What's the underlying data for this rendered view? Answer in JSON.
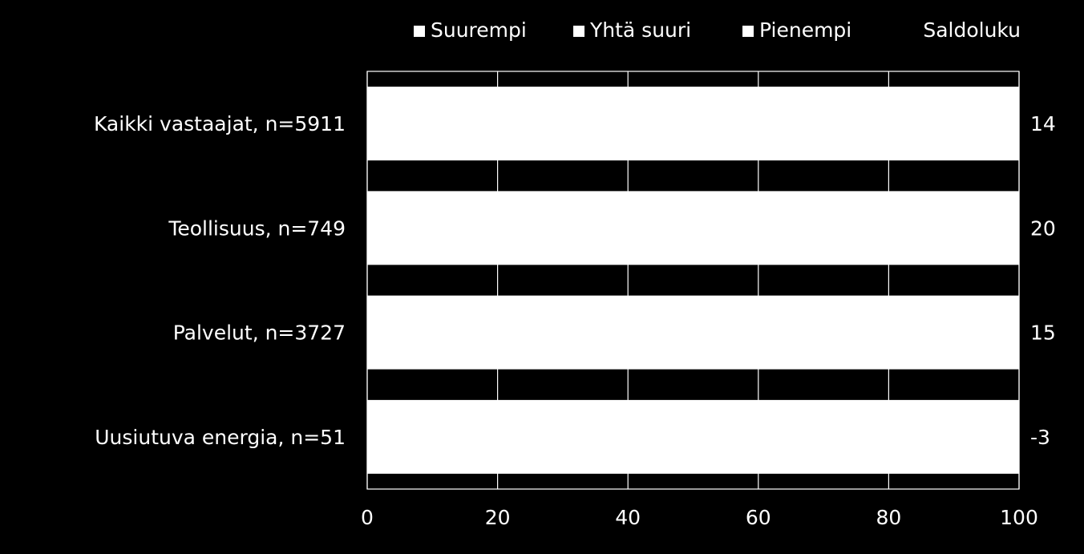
{
  "chart_data": {
    "type": "bar",
    "orientation": "horizontal",
    "stacked": true,
    "categories": [
      "Kaikki vastaajat, n=5911",
      "Teollisuus, n=749",
      "Palvelut, n=3727",
      "Uusiutuva energia, n=51"
    ],
    "series": [
      {
        "name": "Suurempi",
        "values": [
          null,
          null,
          null,
          null
        ],
        "color": "#ffffff"
      },
      {
        "name": "Yhtä suuri",
        "values": [
          null,
          null,
          null,
          null
        ],
        "color": "#ffffff"
      },
      {
        "name": "Pienempi",
        "values": [
          null,
          null,
          null,
          null
        ],
        "color": "#ffffff"
      }
    ],
    "stack_total": 100,
    "saldo_header": "Saldoluku",
    "saldo_values": [
      "14",
      "20",
      "15",
      "-3"
    ],
    "xlim": [
      0,
      100
    ],
    "x_ticks": [
      "0",
      "20",
      "40",
      "60",
      "80",
      "100"
    ],
    "grid": true,
    "legend_position": "top",
    "colors": {
      "background": "#000000",
      "foreground": "#ffffff"
    }
  }
}
